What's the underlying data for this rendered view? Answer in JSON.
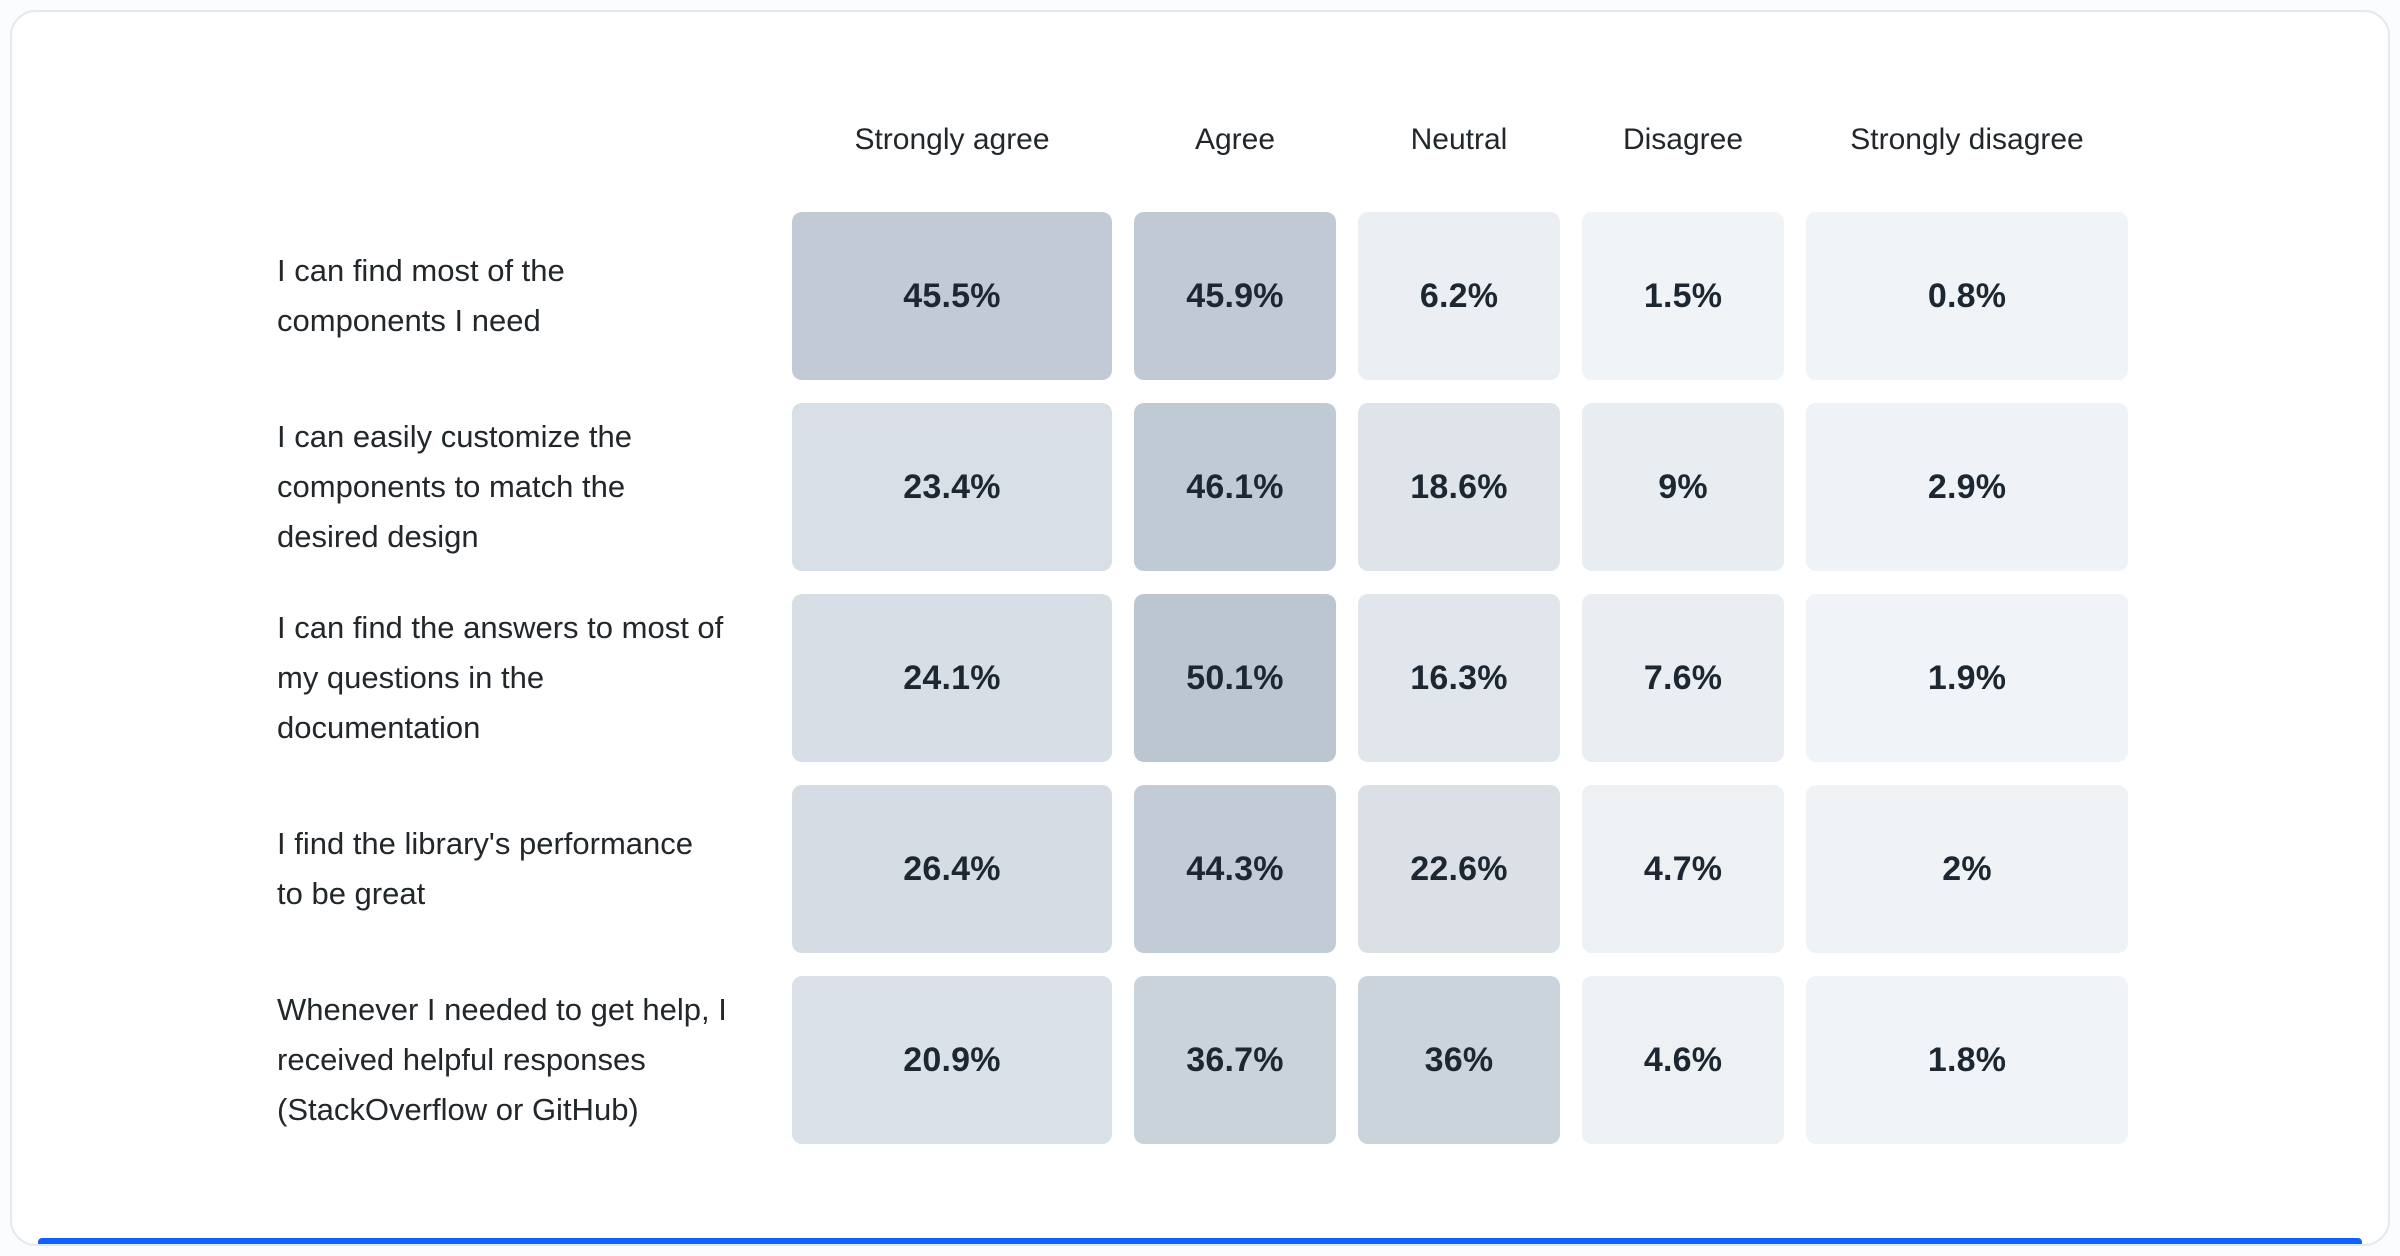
{
  "page": {
    "background": "#fbfcfd"
  },
  "card": {
    "background": "#ffffff",
    "border_color": "#e4e9ed",
    "accent_bar_color": "#0f62fe"
  },
  "chart_data": {
    "type": "heatmap",
    "title": "",
    "columns": [
      "Strongly agree",
      "Agree",
      "Neutral",
      "Disagree",
      "Strongly disagree"
    ],
    "rows": [
      {
        "label": "I can find most of the components I need",
        "values": [
          45.5,
          45.9,
          6.2,
          1.5,
          0.8
        ],
        "labels": [
          "45.5%",
          "45.9%",
          "6.2%",
          "1.5%",
          "0.8%"
        ]
      },
      {
        "label": "I can easily customize the components to match the desired design",
        "values": [
          23.4,
          46.1,
          18.6,
          9,
          2.9
        ],
        "labels": [
          "23.4%",
          "46.1%",
          "18.6%",
          "9%",
          "2.9%"
        ]
      },
      {
        "label": "I can find the answers to most of my questions in the documentation",
        "values": [
          24.1,
          50.1,
          16.3,
          7.6,
          1.9
        ],
        "labels": [
          "24.1%",
          "50.1%",
          "16.3%",
          "7.6%",
          "1.9%"
        ]
      },
      {
        "label": "I find the library's performance to be great",
        "values": [
          26.4,
          44.3,
          22.6,
          4.7,
          2
        ],
        "labels": [
          "26.4%",
          "44.3%",
          "22.6%",
          "4.7%",
          "2%"
        ]
      },
      {
        "label": "Whenever I needed to get help, I received helpful responses (StackOverflow or GitHub)",
        "values": [
          20.9,
          36.7,
          36,
          4.6,
          1.8
        ],
        "labels": [
          "20.9%",
          "36.7%",
          "36%",
          "4.6%",
          "1.8%"
        ]
      }
    ],
    "color_scale": {
      "min": 0,
      "max": 50.1,
      "min_color": "#f2f5f8",
      "max_color": "#bcc6d1"
    },
    "legend": "none",
    "grid": false,
    "xlabel": "",
    "ylabel": ""
  }
}
